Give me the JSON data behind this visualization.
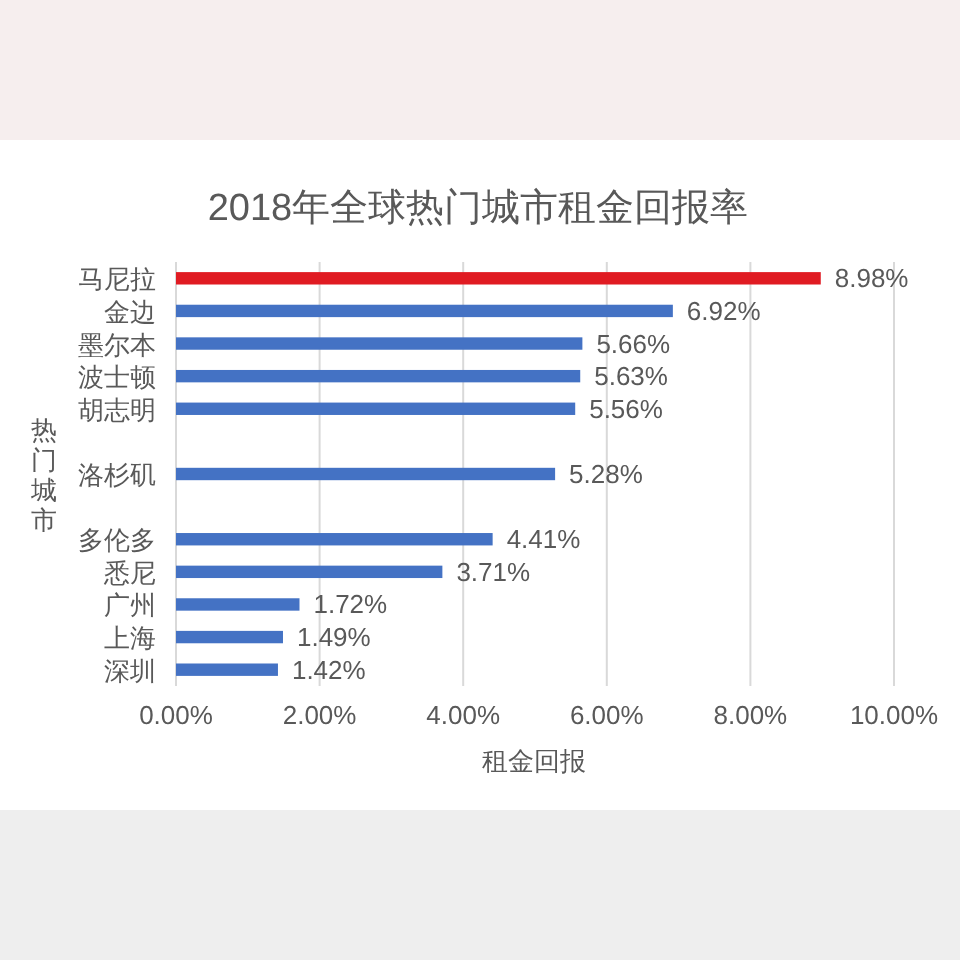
{
  "chart_data": {
    "type": "bar",
    "orientation": "horizontal",
    "title": "2018年全球热门城市租金回报率",
    "xlabel": "租金回报",
    "ylabel": "热门城市",
    "categories": [
      "马尼拉",
      "金边",
      "墨尔本",
      "波士顿",
      "胡志明",
      null,
      "洛杉矶",
      null,
      "多伦多",
      "悉尼",
      "广州",
      "上海",
      "深圳"
    ],
    "values": [
      8.98,
      6.92,
      5.66,
      5.63,
      5.56,
      null,
      5.28,
      null,
      4.41,
      3.71,
      1.72,
      1.49,
      1.42
    ],
    "colors": [
      "#e01b22",
      "#4472c4",
      "#4472c4",
      "#4472c4",
      "#4472c4",
      null,
      "#4472c4",
      null,
      "#4472c4",
      "#4472c4",
      "#4472c4",
      "#4472c4",
      "#4472c4"
    ],
    "value_labels": [
      "8.98%",
      "6.92%",
      "5.66%",
      "5.63%",
      "5.56%",
      null,
      "5.28%",
      null,
      "4.41%",
      "3.71%",
      "1.72%",
      "1.49%",
      "1.42%"
    ],
    "xlim": [
      0,
      10
    ],
    "xticks": [
      {
        "value": 0,
        "label": "0.00%"
      },
      {
        "value": 2,
        "label": "2.00%"
      },
      {
        "value": 4,
        "label": "4.00%"
      },
      {
        "value": 6,
        "label": "6.00%"
      },
      {
        "value": 8,
        "label": "8.00%"
      },
      {
        "value": 10,
        "label": "10.00%"
      }
    ],
    "grid": "x"
  }
}
